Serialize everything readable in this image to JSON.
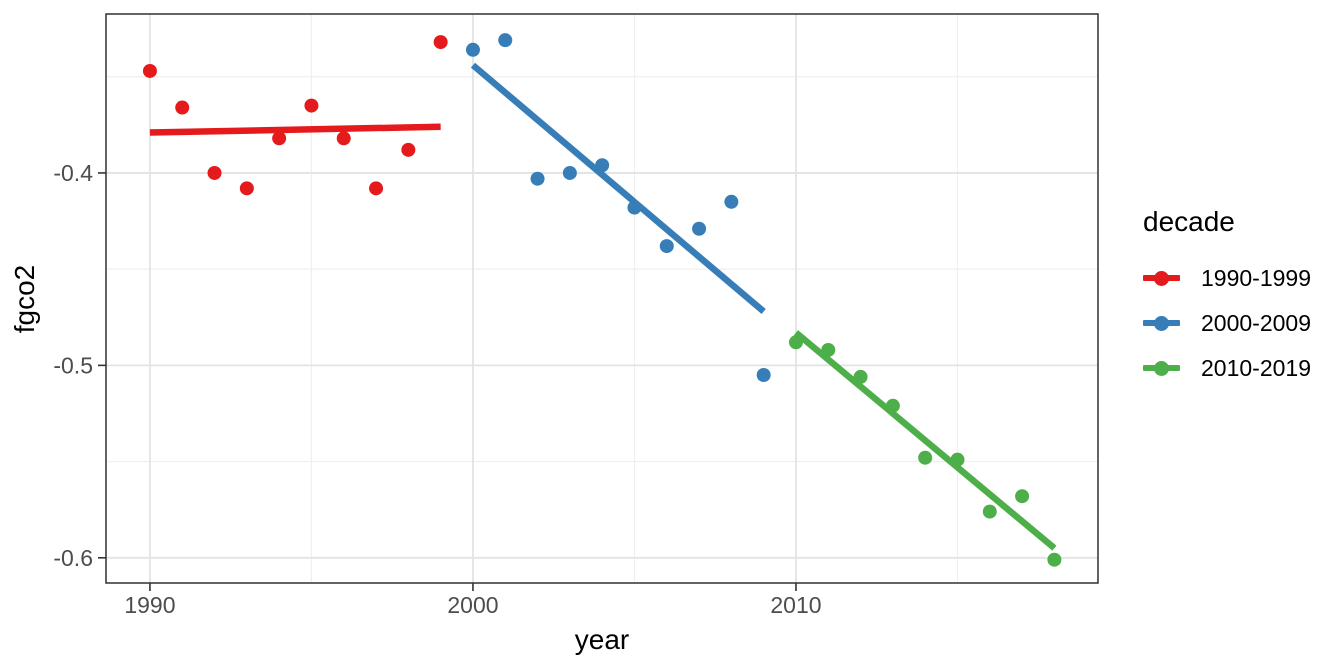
{
  "chart_data": {
    "type": "scatter",
    "title": "",
    "xlabel": "year",
    "ylabel": "fgco2",
    "xlim": [
      1988.64,
      2019.35
    ],
    "ylim": [
      -0.6131,
      -0.3174
    ],
    "x_ticks": [
      1990,
      2000,
      2010
    ],
    "x_tick_labels": [
      "1990",
      "2000",
      "2010"
    ],
    "x_minor_gridlines": [
      1995,
      2005,
      2015
    ],
    "y_ticks": [
      -0.4,
      -0.5,
      -0.6
    ],
    "y_tick_labels": [
      "-0.4",
      "-0.5",
      "-0.6"
    ],
    "y_minor_gridlines": [
      -0.35,
      -0.45,
      -0.55
    ],
    "grid": true,
    "legend": {
      "title": "decade",
      "position": "right"
    },
    "series": [
      {
        "name": "1990-1999",
        "color": "#E41A1C",
        "x": [
          1990,
          1991,
          1992,
          1993,
          1994,
          1995,
          1996,
          1997,
          1998,
          1999
        ],
        "y": [
          -0.347,
          -0.366,
          -0.4,
          -0.408,
          -0.382,
          -0.365,
          -0.382,
          -0.408,
          -0.388,
          -0.332
        ],
        "trend": {
          "x1": 1990,
          "y1": -0.379,
          "x2": 1999,
          "y2": -0.376
        }
      },
      {
        "name": "2000-2009",
        "color": "#377EB8",
        "x": [
          2000,
          2001,
          2002,
          2003,
          2004,
          2005,
          2006,
          2007,
          2008,
          2009
        ],
        "y": [
          -0.336,
          -0.331,
          -0.403,
          -0.4,
          -0.396,
          -0.418,
          -0.438,
          -0.429,
          -0.415,
          -0.505
        ],
        "trend": {
          "x1": 2000,
          "y1": -0.344,
          "x2": 2009,
          "y2": -0.472
        }
      },
      {
        "name": "2010-2019",
        "color": "#4DAF4A",
        "x": [
          2010,
          2011,
          2012,
          2013,
          2014,
          2015,
          2016,
          2017,
          2018
        ],
        "y": [
          -0.488,
          -0.492,
          -0.506,
          -0.521,
          -0.548,
          -0.549,
          -0.576,
          -0.568,
          -0.601
        ],
        "trend": {
          "x1": 2010,
          "y1": -0.483,
          "x2": 2018,
          "y2": -0.595
        }
      }
    ]
  },
  "colors": {
    "background": "#ffffff",
    "panel_background": "#ffffff",
    "grid_major": "#e3e3e3",
    "grid_minor": "#efefef",
    "panel_border": "#303030",
    "tick_mark": "#333333",
    "tick_label": "#4d4d4d",
    "axis_title": "#000000"
  }
}
